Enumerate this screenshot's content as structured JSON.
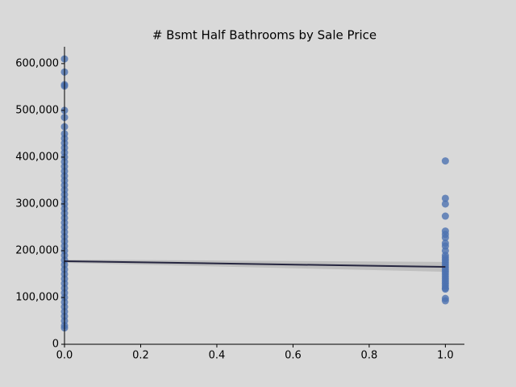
{
  "chart_data": {
    "type": "scatter",
    "title": "# Bsmt Half Bathrooms by Sale Price",
    "x": [
      0,
      0,
      0,
      0,
      0,
      0,
      0,
      0,
      0,
      0,
      0,
      0,
      0,
      0,
      0,
      0,
      0,
      0,
      0,
      0,
      0,
      0,
      0,
      0,
      0,
      0,
      0,
      0,
      0,
      0,
      0,
      0,
      0,
      0,
      0,
      0,
      0,
      0,
      0,
      0,
      0,
      0,
      0,
      0,
      0,
      0,
      0,
      0,
      0,
      0,
      1,
      1,
      1,
      1,
      1,
      1,
      1,
      1,
      1,
      1,
      1,
      1,
      1,
      1,
      1,
      1,
      1,
      1,
      1,
      1,
      1,
      1,
      1,
      1,
      1,
      1,
      1,
      1
    ],
    "values": [
      610000,
      582000,
      555000,
      552000,
      500000,
      485000,
      465000,
      450000,
      440000,
      430000,
      420000,
      410000,
      400000,
      390000,
      380000,
      370000,
      360000,
      350000,
      340000,
      330000,
      320000,
      310000,
      300000,
      290000,
      280000,
      270000,
      260000,
      250000,
      240000,
      230000,
      220000,
      210000,
      200000,
      190000,
      180000,
      170000,
      160000,
      150000,
      140000,
      130000,
      120000,
      110000,
      100000,
      90000,
      80000,
      70000,
      60000,
      50000,
      40000,
      35000,
      392000,
      312000,
      300000,
      274000,
      242000,
      235000,
      228000,
      216000,
      210000,
      200000,
      190000,
      185000,
      180000,
      175000,
      170000,
      165000,
      160000,
      155000,
      150000,
      145000,
      140000,
      135000,
      130000,
      125000,
      120000,
      118000,
      98000,
      93000
    ],
    "color": "#4c72b0",
    "regression": {
      "x": [
        0,
        1
      ],
      "values": [
        177600,
        165500
      ],
      "lower": [
        174000,
        155000
      ],
      "upper": [
        181000,
        176000
      ],
      "color": "#262640",
      "band_color": "#b8b8b8"
    },
    "xlim": [
      0,
      1.05
    ],
    "ylim": [
      0,
      636000
    ],
    "xticks": [
      {
        "value": 0,
        "label": "0.0"
      },
      {
        "value": 0.2,
        "label": "0.2"
      },
      {
        "value": 0.4,
        "label": "0.4"
      },
      {
        "value": 0.6,
        "label": "0.6"
      },
      {
        "value": 0.8,
        "label": "0.8"
      },
      {
        "value": 1,
        "label": "1.0"
      }
    ],
    "yticks": [
      0,
      {
        "value": 100000,
        "label": "100,000"
      },
      {
        "value": 200000,
        "label": "200,000"
      },
      {
        "value": 300000,
        "label": "300,000"
      },
      {
        "value": 400000,
        "label": "400,000"
      },
      {
        "value": 500000,
        "label": "500,000"
      },
      {
        "value": 600000,
        "label": "600,000"
      }
    ],
    "grid": false
  }
}
